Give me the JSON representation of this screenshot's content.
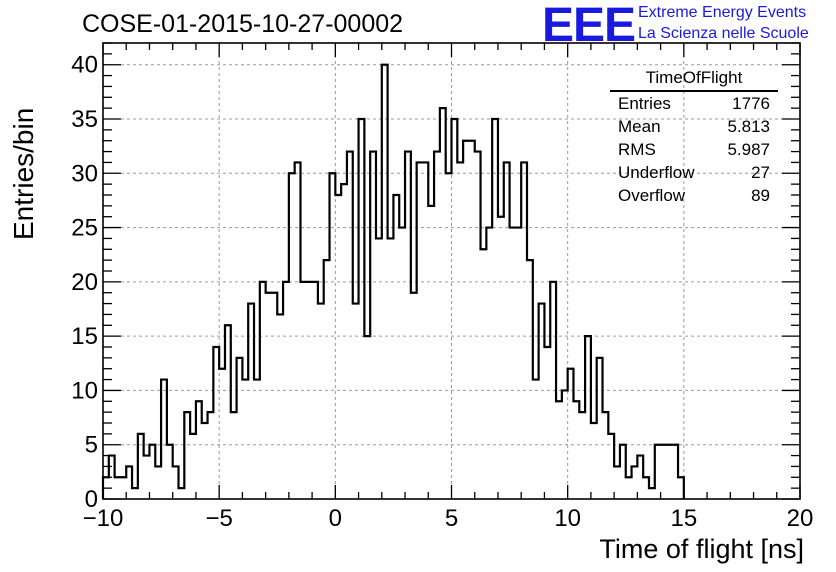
{
  "run_title": "COSE-01-2015-10-27-00002",
  "logo": {
    "mark": "EEE",
    "line1": "Extreme Energy Events",
    "line2": "La Scienza nelle Scuole",
    "color": "#1a1adf"
  },
  "stats_box": {
    "title": "TimeOfFlight",
    "rows": [
      {
        "label": "Entries",
        "value": "1776"
      },
      {
        "label": "Mean",
        "value": "5.813"
      },
      {
        "label": "RMS",
        "value": "5.987"
      },
      {
        "label": "Underflow",
        "value": "27"
      },
      {
        "label": "Overflow",
        "value": "89"
      }
    ]
  },
  "chart_data": {
    "type": "bar",
    "style": "step-histogram",
    "xlabel": "Time of flight [ns]",
    "ylabel": "Entries/bin",
    "xlim": [
      -10,
      20
    ],
    "ylim": [
      0,
      42
    ],
    "bin_width": 0.25,
    "grid": true,
    "x_ticks": [
      -10,
      -5,
      0,
      5,
      10,
      15,
      20
    ],
    "x_tick_labels": [
      "−10",
      "−5",
      "0",
      "5",
      "10",
      "15",
      "20"
    ],
    "y_ticks": [
      0,
      5,
      10,
      15,
      20,
      25,
      30,
      35,
      40
    ],
    "y_tick_labels": [
      "0",
      "5",
      "10",
      "15",
      "20",
      "25",
      "30",
      "35",
      "40"
    ],
    "values": [
      2,
      4,
      2,
      2,
      3,
      1,
      6,
      4,
      5,
      3,
      11,
      5,
      3,
      1,
      8,
      6,
      9,
      7,
      8,
      14,
      12,
      16,
      8,
      13,
      11,
      18,
      11,
      20,
      19,
      19,
      17,
      20,
      30,
      31,
      20,
      20,
      20,
      18,
      22,
      30,
      28,
      29,
      32,
      18,
      35,
      15,
      32,
      24,
      40,
      24,
      28,
      25,
      32,
      19,
      31,
      31,
      27,
      32,
      36,
      30,
      35,
      31,
      33,
      33,
      32,
      23,
      25,
      35,
      26,
      31,
      25,
      25,
      31,
      22,
      11,
      18,
      14,
      20,
      9,
      10,
      12,
      9,
      8,
      15,
      7,
      13,
      8,
      6,
      3,
      5,
      2,
      3,
      4,
      2,
      1,
      5,
      5,
      5,
      5,
      2
    ]
  }
}
